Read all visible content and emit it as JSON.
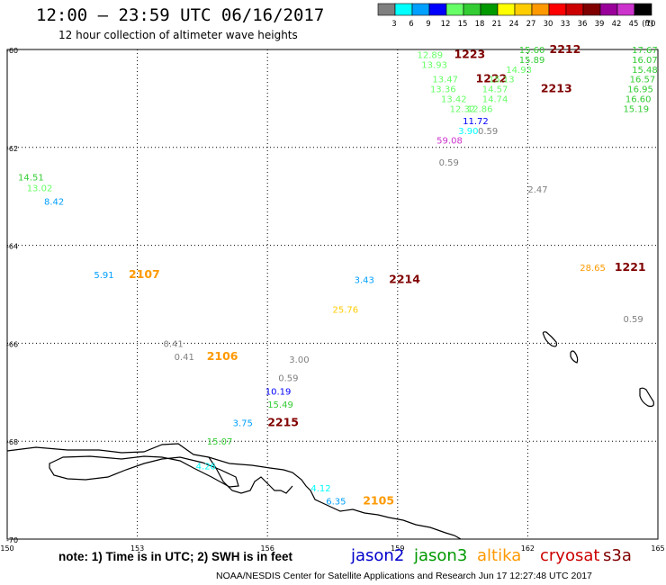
{
  "header": {
    "title": "12:00 – 23:59 UTC 06/16/2017",
    "subtitle": "12 hour collection of altimeter wave heights"
  },
  "colorbar": {
    "unit_label": "(ft)",
    "bins": [
      {
        "color": "#7f7f7f",
        "label": "3"
      },
      {
        "color": "#00ffff",
        "label": "6"
      },
      {
        "color": "#00a0ff",
        "label": "9"
      },
      {
        "color": "#0000ff",
        "label": "12"
      },
      {
        "color": "#66ff66",
        "label": "15"
      },
      {
        "color": "#33cc33",
        "label": "18"
      },
      {
        "color": "#009900",
        "label": "21"
      },
      {
        "color": "#ffff00",
        "label": "24"
      },
      {
        "color": "#ffcc00",
        "label": "27"
      },
      {
        "color": "#ff9900",
        "label": "30"
      },
      {
        "color": "#ff0000",
        "label": "33"
      },
      {
        "color": "#cc0000",
        "label": "36"
      },
      {
        "color": "#800000",
        "label": "39"
      },
      {
        "color": "#990099",
        "label": "42"
      },
      {
        "color": "#cc33cc",
        "label": "45"
      },
      {
        "color": "#000000",
        "label": "70"
      }
    ]
  },
  "map": {
    "lat_labels": [
      "-60",
      "-62",
      "-64",
      "-66",
      "-68",
      "-70"
    ],
    "lon_labels": [
      "150",
      "153",
      "156",
      "159",
      "162",
      "165"
    ],
    "observations": [
      {
        "text": "12.89",
        "color": "#66ff66",
        "lon": 159.45,
        "lat": -60.1
      },
      {
        "text": "13.93",
        "color": "#66ff66",
        "lon": 159.55,
        "lat": -60.3
      },
      {
        "text": "1223",
        "color": "#800000",
        "lon": 160.3,
        "lat": -60.1,
        "kind": "time"
      },
      {
        "text": "15.60",
        "color": "#33cc33",
        "lon": 161.8,
        "lat": -60.0
      },
      {
        "text": "2212",
        "color": "#800000",
        "lon": 162.5,
        "lat": -60.0,
        "kind": "time"
      },
      {
        "text": "15.89",
        "color": "#33cc33",
        "lon": 161.8,
        "lat": -60.2
      },
      {
        "text": "14.93",
        "color": "#66ff66",
        "lon": 161.5,
        "lat": -60.4
      },
      {
        "text": "17.67",
        "color": "#33cc33",
        "lon": 164.4,
        "lat": -60.0
      },
      {
        "text": "16.07",
        "color": "#33cc33",
        "lon": 164.4,
        "lat": -60.2
      },
      {
        "text": "15.48",
        "color": "#33cc33",
        "lon": 164.4,
        "lat": -60.4
      },
      {
        "text": "16.57",
        "color": "#33cc33",
        "lon": 164.35,
        "lat": -60.6
      },
      {
        "text": "16.95",
        "color": "#33cc33",
        "lon": 164.3,
        "lat": -60.8
      },
      {
        "text": "16.60",
        "color": "#33cc33",
        "lon": 164.25,
        "lat": -61.0
      },
      {
        "text": "15.19",
        "color": "#33cc33",
        "lon": 164.2,
        "lat": -61.2
      },
      {
        "text": "13.47",
        "color": "#66ff66",
        "lon": 159.8,
        "lat": -60.6
      },
      {
        "text": "1222",
        "color": "#800000",
        "lon": 160.8,
        "lat": -60.6,
        "kind": "time"
      },
      {
        "text": "15.13",
        "color": "#66ff66",
        "lon": 161.1,
        "lat": -60.6
      },
      {
        "text": "13.36",
        "color": "#66ff66",
        "lon": 159.75,
        "lat": -60.8
      },
      {
        "text": "14.57",
        "color": "#66ff66",
        "lon": 160.95,
        "lat": -60.8
      },
      {
        "text": "2213",
        "color": "#800000",
        "lon": 162.3,
        "lat": -60.8,
        "kind": "time"
      },
      {
        "text": "13.42",
        "color": "#66ff66",
        "lon": 160.0,
        "lat": -61.0
      },
      {
        "text": "14.74",
        "color": "#66ff66",
        "lon": 160.95,
        "lat": -61.0
      },
      {
        "text": "12.32",
        "color": "#66ff66",
        "lon": 160.2,
        "lat": -61.2
      },
      {
        "text": "12.86",
        "color": "#66ff66",
        "lon": 160.6,
        "lat": -61.2
      },
      {
        "text": "11.72",
        "color": "#0000ff",
        "lon": 160.5,
        "lat": -61.45
      },
      {
        "text": "3.90",
        "color": "#00ffff",
        "lon": 160.4,
        "lat": -61.65
      },
      {
        "text": "0.59",
        "color": "#7f7f7f",
        "lon": 160.85,
        "lat": -61.65
      },
      {
        "text": "59.08",
        "color": "#cc33cc",
        "lon": 159.9,
        "lat": -61.85
      },
      {
        "text": "0.59",
        "color": "#7f7f7f",
        "lon": 159.95,
        "lat": -62.3
      },
      {
        "text": "2.47",
        "color": "#7f7f7f",
        "lon": 162.0,
        "lat": -62.85
      },
      {
        "text": "14.51",
        "color": "#33cc33",
        "lon": 150.25,
        "lat": -62.6
      },
      {
        "text": "13.02",
        "color": "#66ff66",
        "lon": 150.45,
        "lat": -62.82
      },
      {
        "text": "8.42",
        "color": "#00a0ff",
        "lon": 150.85,
        "lat": -63.1
      },
      {
        "text": "5.91",
        "color": "#00a0ff",
        "lon": 152.0,
        "lat": -64.6
      },
      {
        "text": "2107",
        "color": "#ff9900",
        "lon": 152.8,
        "lat": -64.6,
        "kind": "time"
      },
      {
        "text": "3.43",
        "color": "#00a0ff",
        "lon": 158.0,
        "lat": -64.7
      },
      {
        "text": "2214",
        "color": "#800000",
        "lon": 158.8,
        "lat": -64.7,
        "kind": "time"
      },
      {
        "text": "25.76",
        "color": "#ffcc00",
        "lon": 157.5,
        "lat": -65.3
      },
      {
        "text": "28.65",
        "color": "#ff9900",
        "lon": 163.2,
        "lat": -64.45
      },
      {
        "text": "1221",
        "color": "#800000",
        "lon": 164.0,
        "lat": -64.45,
        "kind": "time"
      },
      {
        "text": "0.59",
        "color": "#7f7f7f",
        "lon": 164.2,
        "lat": -65.5
      },
      {
        "text": "0.41",
        "color": "#7f7f7f",
        "lon": 153.6,
        "lat": -66.0
      },
      {
        "text": "0.41",
        "color": "#7f7f7f",
        "lon": 153.85,
        "lat": -66.27
      },
      {
        "text": "2106",
        "color": "#ff9900",
        "lon": 154.6,
        "lat": -66.27,
        "kind": "time"
      },
      {
        "text": "3.00",
        "color": "#7f7f7f",
        "lon": 156.5,
        "lat": -66.32
      },
      {
        "text": "0.59",
        "color": "#7f7f7f",
        "lon": 156.25,
        "lat": -66.7
      },
      {
        "text": "10.19",
        "color": "#0000ff",
        "lon": 155.95,
        "lat": -66.98
      },
      {
        "text": "15.49",
        "color": "#33cc33",
        "lon": 156.0,
        "lat": -67.24
      },
      {
        "text": "3.75",
        "color": "#00a0ff",
        "lon": 155.2,
        "lat": -67.62
      },
      {
        "text": "2215",
        "color": "#800000",
        "lon": 156.0,
        "lat": -67.62,
        "kind": "time"
      },
      {
        "text": "15.07",
        "color": "#33cc33",
        "lon": 154.6,
        "lat": -68.0
      },
      {
        "text": "4.26",
        "color": "#00ffff",
        "lon": 154.35,
        "lat": -68.5
      },
      {
        "text": "4.12",
        "color": "#00ffff",
        "lon": 157.0,
        "lat": -68.95
      },
      {
        "text": "6.35",
        "color": "#00a0ff",
        "lon": 157.35,
        "lat": -69.22
      },
      {
        "text": "2105",
        "color": "#ff9900",
        "lon": 158.2,
        "lat": -69.22,
        "kind": "time"
      }
    ]
  },
  "footer": {
    "note": "note:  1) Time is in UTC; 2) SWH is in feet",
    "satellites": [
      {
        "name": "jason2",
        "color": "#0000cc"
      },
      {
        "name": "jason3",
        "color": "#009900"
      },
      {
        "name": "altika",
        "color": "#ff9900"
      },
      {
        "name": "cryosat",
        "color": "#cc0000"
      },
      {
        "name": "s3a",
        "color": "#800000"
      }
    ],
    "credit": "NOAA/NESDIS Center for Satellite Applications and Research    Jun 17 12:27:48 UTC 2017"
  }
}
